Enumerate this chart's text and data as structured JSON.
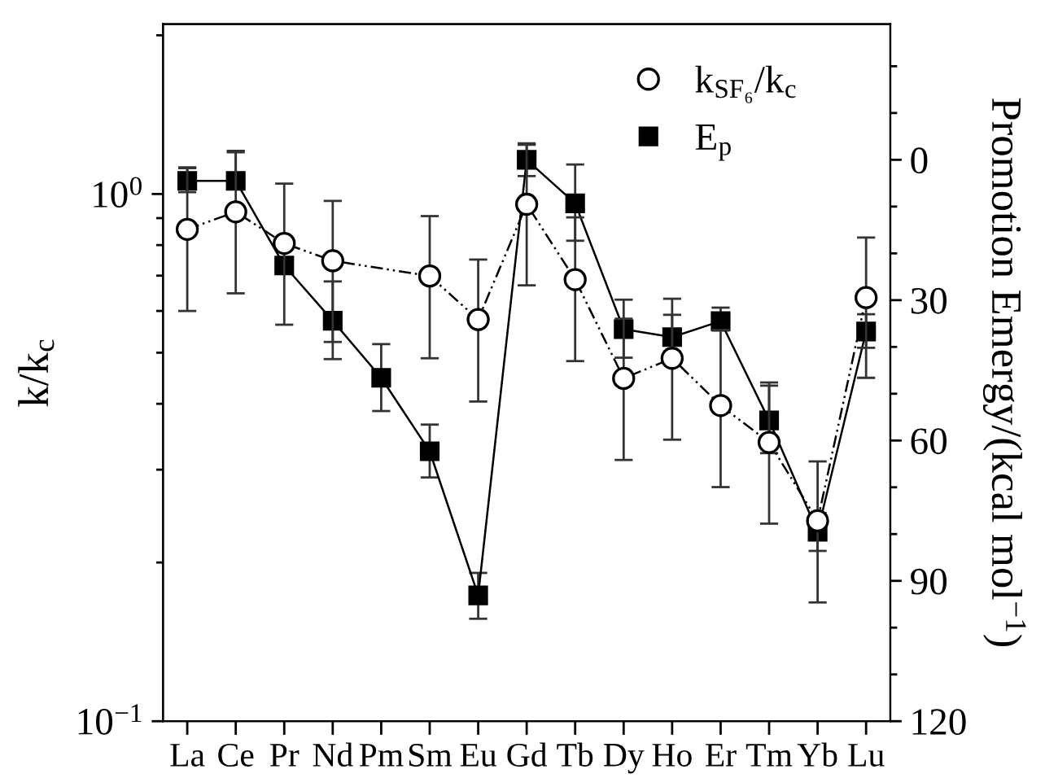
{
  "chart_data": {
    "type": "line",
    "categories": [
      "La",
      "Ce",
      "Pr",
      "Nd",
      "Pm",
      "Sm",
      "Eu",
      "Gd",
      "Tb",
      "Dy",
      "Ho",
      "Er",
      "Tm",
      "Yb",
      "Lu"
    ],
    "ylabel": "k/k$_{c}$",
    "y2label": "Promotion Emergy/(kcal mol$^{−1}$)",
    "log": "y",
    "ylim": [
      0.1,
      2.1
    ],
    "yticks": [
      {
        "value": 0.1,
        "label": "10$^{−1}$"
      },
      {
        "value": 1,
        "label": "10$^{0}$"
      }
    ],
    "y2lim": [
      120,
      -29
    ],
    "y2ticks": [
      0,
      30,
      60,
      90,
      120
    ],
    "legend": "top right",
    "grid": false,
    "series": [
      {
        "name": "k$_{SF₆}$/k$_{c}$",
        "color": "#000000",
        "marker": "circle",
        "line_style": "dashed",
        "values": [
          0.857,
          0.925,
          0.806,
          0.747,
          null,
          0.699,
          0.578,
          0.956,
          0.688,
          0.447,
          0.488,
          0.397,
          0.338,
          0.24,
          0.636
        ],
        "errors": [
          [
            0.6,
            1.12
          ],
          [
            0.648,
            1.2
          ],
          [
            0.565,
            1.046
          ],
          [
            0.524,
            0.97
          ],
          null,
          [
            0.488,
            0.908
          ],
          [
            0.404,
            0.751
          ],
          [
            0.671,
            1.24
          ],
          [
            0.482,
            0.903
          ],
          [
            0.313,
            0.58
          ],
          [
            0.342,
            0.59
          ],
          [
            0.278,
            0.552
          ],
          [
            0.237,
            0.433
          ],
          [
            0.168,
            0.311
          ],
          [
            0.511,
            0.827
          ]
        ]
      },
      {
        "name": "E$_{p}$",
        "color": "#000000",
        "marker": "square",
        "line_style": "solid",
        "axis": "y2",
        "values": [
          4.5,
          4.5,
          22.6,
          34.4,
          46.6,
          62.3,
          93.1,
          0,
          9.3,
          36.2,
          37.9,
          34.5,
          55.7,
          79.5,
          36.7
        ],
        "errors": [
          [
            1.6,
            6.9
          ],
          [
            -1.9,
            5.7
          ],
          null,
          [
            26,
            42.6
          ],
          [
            39.4,
            53.7
          ],
          [
            56.6,
            67.9
          ],
          [
            88.3,
            98.1
          ],
          3.5,
          [
            1.0,
            17.3
          ],
          [
            29.9,
            42.3
          ],
          [
            29.7,
            41.0
          ],
          [
            31.6,
            36.5
          ],
          [
            47.6,
            62.7
          ],
          [
            75.5,
            83.6
          ],
          [
            33.0,
            46.6
          ]
        ]
      }
    ]
  }
}
